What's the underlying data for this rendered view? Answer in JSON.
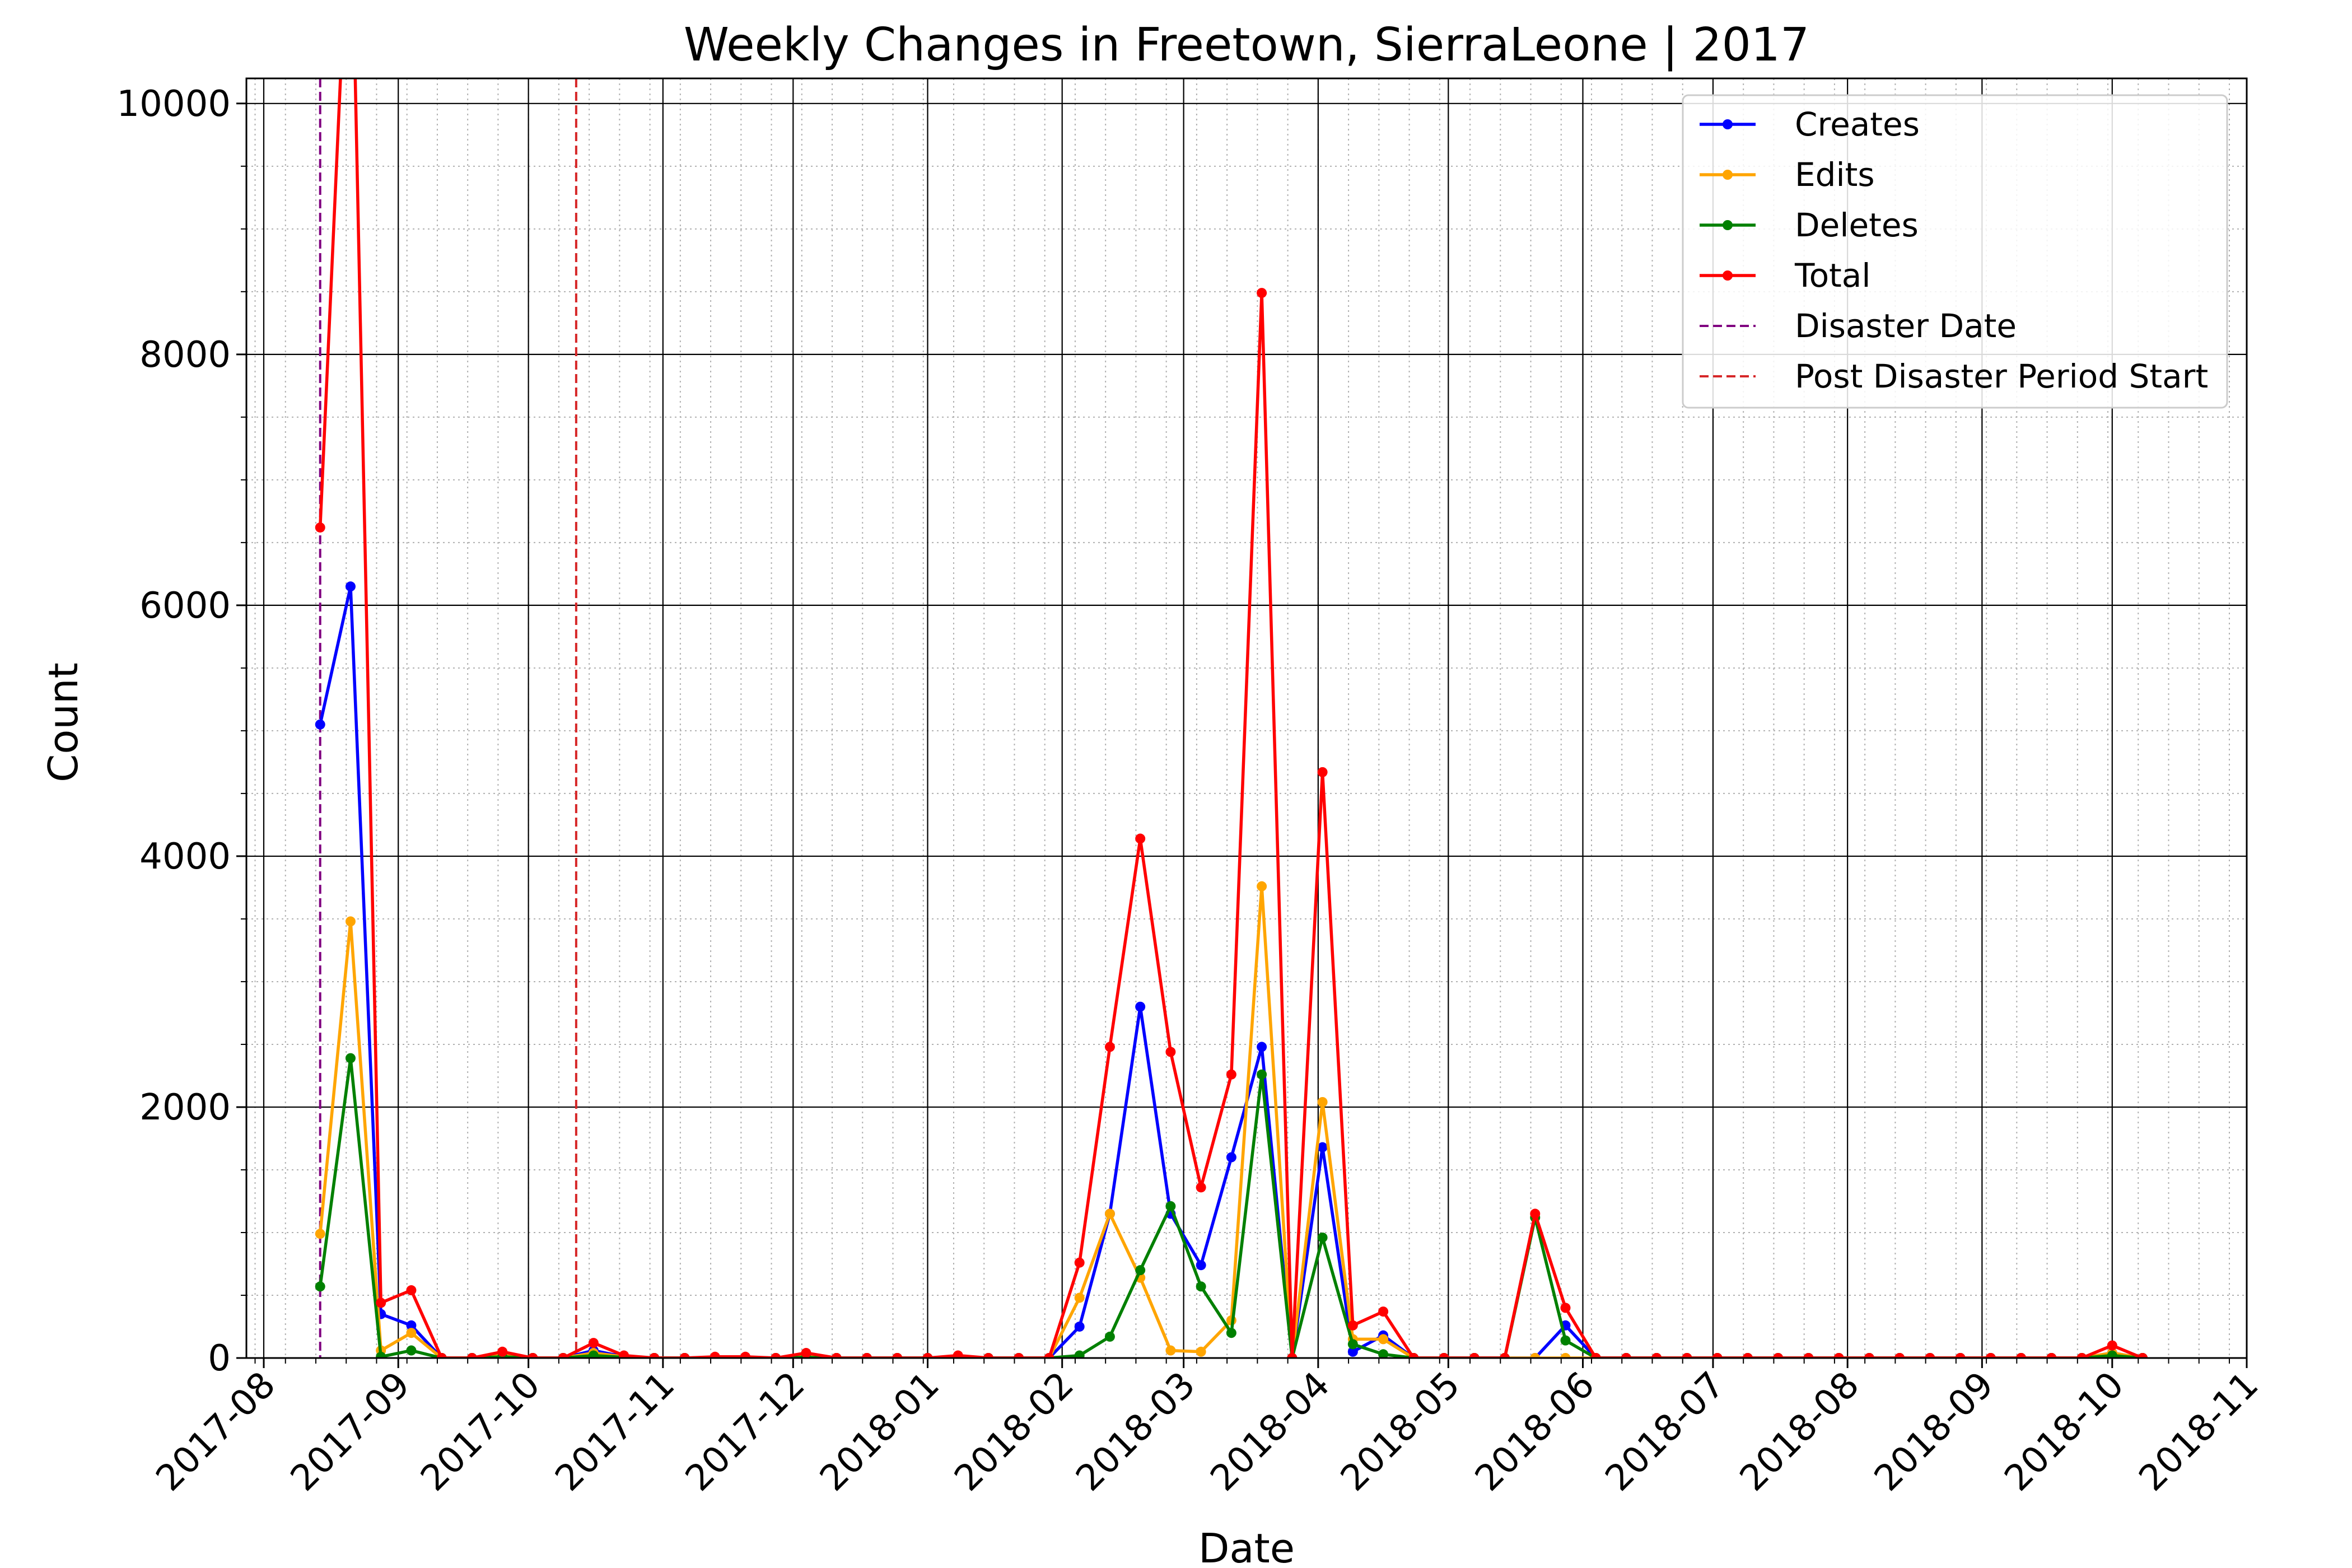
{
  "chart_data": {
    "type": "line",
    "title": "Weekly Changes in Freetown, SierraLeone | 2017",
    "xlabel": "Date",
    "ylabel": "Count",
    "xlim": [
      "2017-07-28",
      "2018-11-01"
    ],
    "ylim": [
      0,
      10200
    ],
    "grid": "major solid, minor dotted",
    "legend_position": "top-right",
    "x_tick_labels": [
      "2017-08",
      "2017-09",
      "2017-10",
      "2017-11",
      "2017-12",
      "2018-01",
      "2018-02",
      "2018-03",
      "2018-04",
      "2018-05",
      "2018-06",
      "2018-07",
      "2018-08",
      "2018-09",
      "2018-10",
      "2018-11"
    ],
    "y_tick_values": [
      0,
      2000,
      4000,
      6000,
      8000,
      10000
    ],
    "y_tick_labels": [
      "0",
      "2000",
      "4000",
      "6000",
      "8000",
      "10000"
    ],
    "x": [
      "2017-08-14",
      "2017-08-21",
      "2017-08-28",
      "2017-09-04",
      "2017-09-11",
      "2017-09-18",
      "2017-09-25",
      "2017-10-02",
      "2017-10-09",
      "2017-10-16",
      "2017-10-23",
      "2017-10-30",
      "2017-11-06",
      "2017-11-13",
      "2017-11-20",
      "2017-11-27",
      "2017-12-04",
      "2017-12-11",
      "2017-12-18",
      "2017-12-25",
      "2018-01-01",
      "2018-01-08",
      "2018-01-15",
      "2018-01-22",
      "2018-01-29",
      "2018-02-05",
      "2018-02-12",
      "2018-02-19",
      "2018-02-26",
      "2018-03-05",
      "2018-03-12",
      "2018-03-19",
      "2018-03-26",
      "2018-04-02",
      "2018-04-09",
      "2018-04-16",
      "2018-04-23",
      "2018-04-30",
      "2018-05-07",
      "2018-05-14",
      "2018-05-21",
      "2018-05-28",
      "2018-06-04",
      "2018-06-11",
      "2018-06-18",
      "2018-06-25",
      "2018-07-02",
      "2018-07-09",
      "2018-07-16",
      "2018-07-23",
      "2018-07-30",
      "2018-08-06",
      "2018-08-13",
      "2018-08-20",
      "2018-08-27",
      "2018-09-03",
      "2018-09-10",
      "2018-09-17",
      "2018-09-24",
      "2018-10-01",
      "2018-10-08"
    ],
    "series": [
      {
        "name": "Creates",
        "color": "#0000ff",
        "values": [
          5050,
          6150,
          350,
          260,
          0,
          0,
          10,
          0,
          0,
          60,
          10,
          0,
          0,
          5,
          5,
          0,
          20,
          0,
          0,
          0,
          0,
          5,
          0,
          0,
          0,
          250,
          1150,
          2800,
          1150,
          740,
          1600,
          2480,
          0,
          1680,
          50,
          180,
          0,
          0,
          0,
          0,
          0,
          260,
          0,
          0,
          0,
          0,
          0,
          0,
          0,
          0,
          0,
          0,
          0,
          0,
          0,
          0,
          0,
          0,
          0,
          40,
          0
        ]
      },
      {
        "name": "Edits",
        "color": "#ffa500",
        "values": [
          990,
          3480,
          60,
          200,
          0,
          0,
          20,
          0,
          0,
          40,
          10,
          0,
          0,
          5,
          5,
          0,
          10,
          0,
          0,
          0,
          0,
          5,
          0,
          0,
          0,
          480,
          1150,
          640,
          60,
          50,
          300,
          3760,
          0,
          2040,
          150,
          150,
          0,
          0,
          0,
          0,
          0,
          0,
          0,
          0,
          0,
          0,
          0,
          0,
          0,
          0,
          0,
          0,
          0,
          0,
          0,
          0,
          0,
          0,
          0,
          40,
          0
        ]
      },
      {
        "name": "Deletes",
        "color": "#008000",
        "values": [
          570,
          2390,
          10,
          60,
          0,
          0,
          10,
          0,
          0,
          20,
          5,
          0,
          0,
          0,
          0,
          0,
          5,
          0,
          0,
          0,
          0,
          0,
          0,
          0,
          0,
          20,
          170,
          700,
          1210,
          570,
          200,
          2260,
          0,
          960,
          110,
          30,
          0,
          0,
          0,
          0,
          1120,
          140,
          0,
          0,
          0,
          0,
          0,
          0,
          0,
          0,
          0,
          0,
          0,
          0,
          0,
          0,
          0,
          0,
          0,
          20,
          0
        ]
      },
      {
        "name": "Total",
        "color": "#ff0000",
        "values": [
          6620,
          11980,
          440,
          540,
          0,
          0,
          50,
          0,
          0,
          120,
          20,
          0,
          0,
          10,
          10,
          0,
          40,
          0,
          0,
          0,
          0,
          20,
          0,
          0,
          0,
          760,
          2480,
          4140,
          2440,
          1360,
          2260,
          8490,
          0,
          4670,
          260,
          370,
          0,
          0,
          0,
          0,
          1150,
          400,
          0,
          0,
          0,
          0,
          0,
          0,
          0,
          0,
          0,
          0,
          0,
          0,
          0,
          0,
          0,
          0,
          0,
          100,
          0
        ]
      }
    ],
    "vertical_lines": [
      {
        "name": "Disaster Date",
        "date": "2017-08-14",
        "color": "#800080",
        "style": "dashed"
      },
      {
        "name": "Post Disaster Period Start",
        "date": "2017-10-12",
        "color": "#d62728",
        "style": "dashed"
      }
    ]
  }
}
